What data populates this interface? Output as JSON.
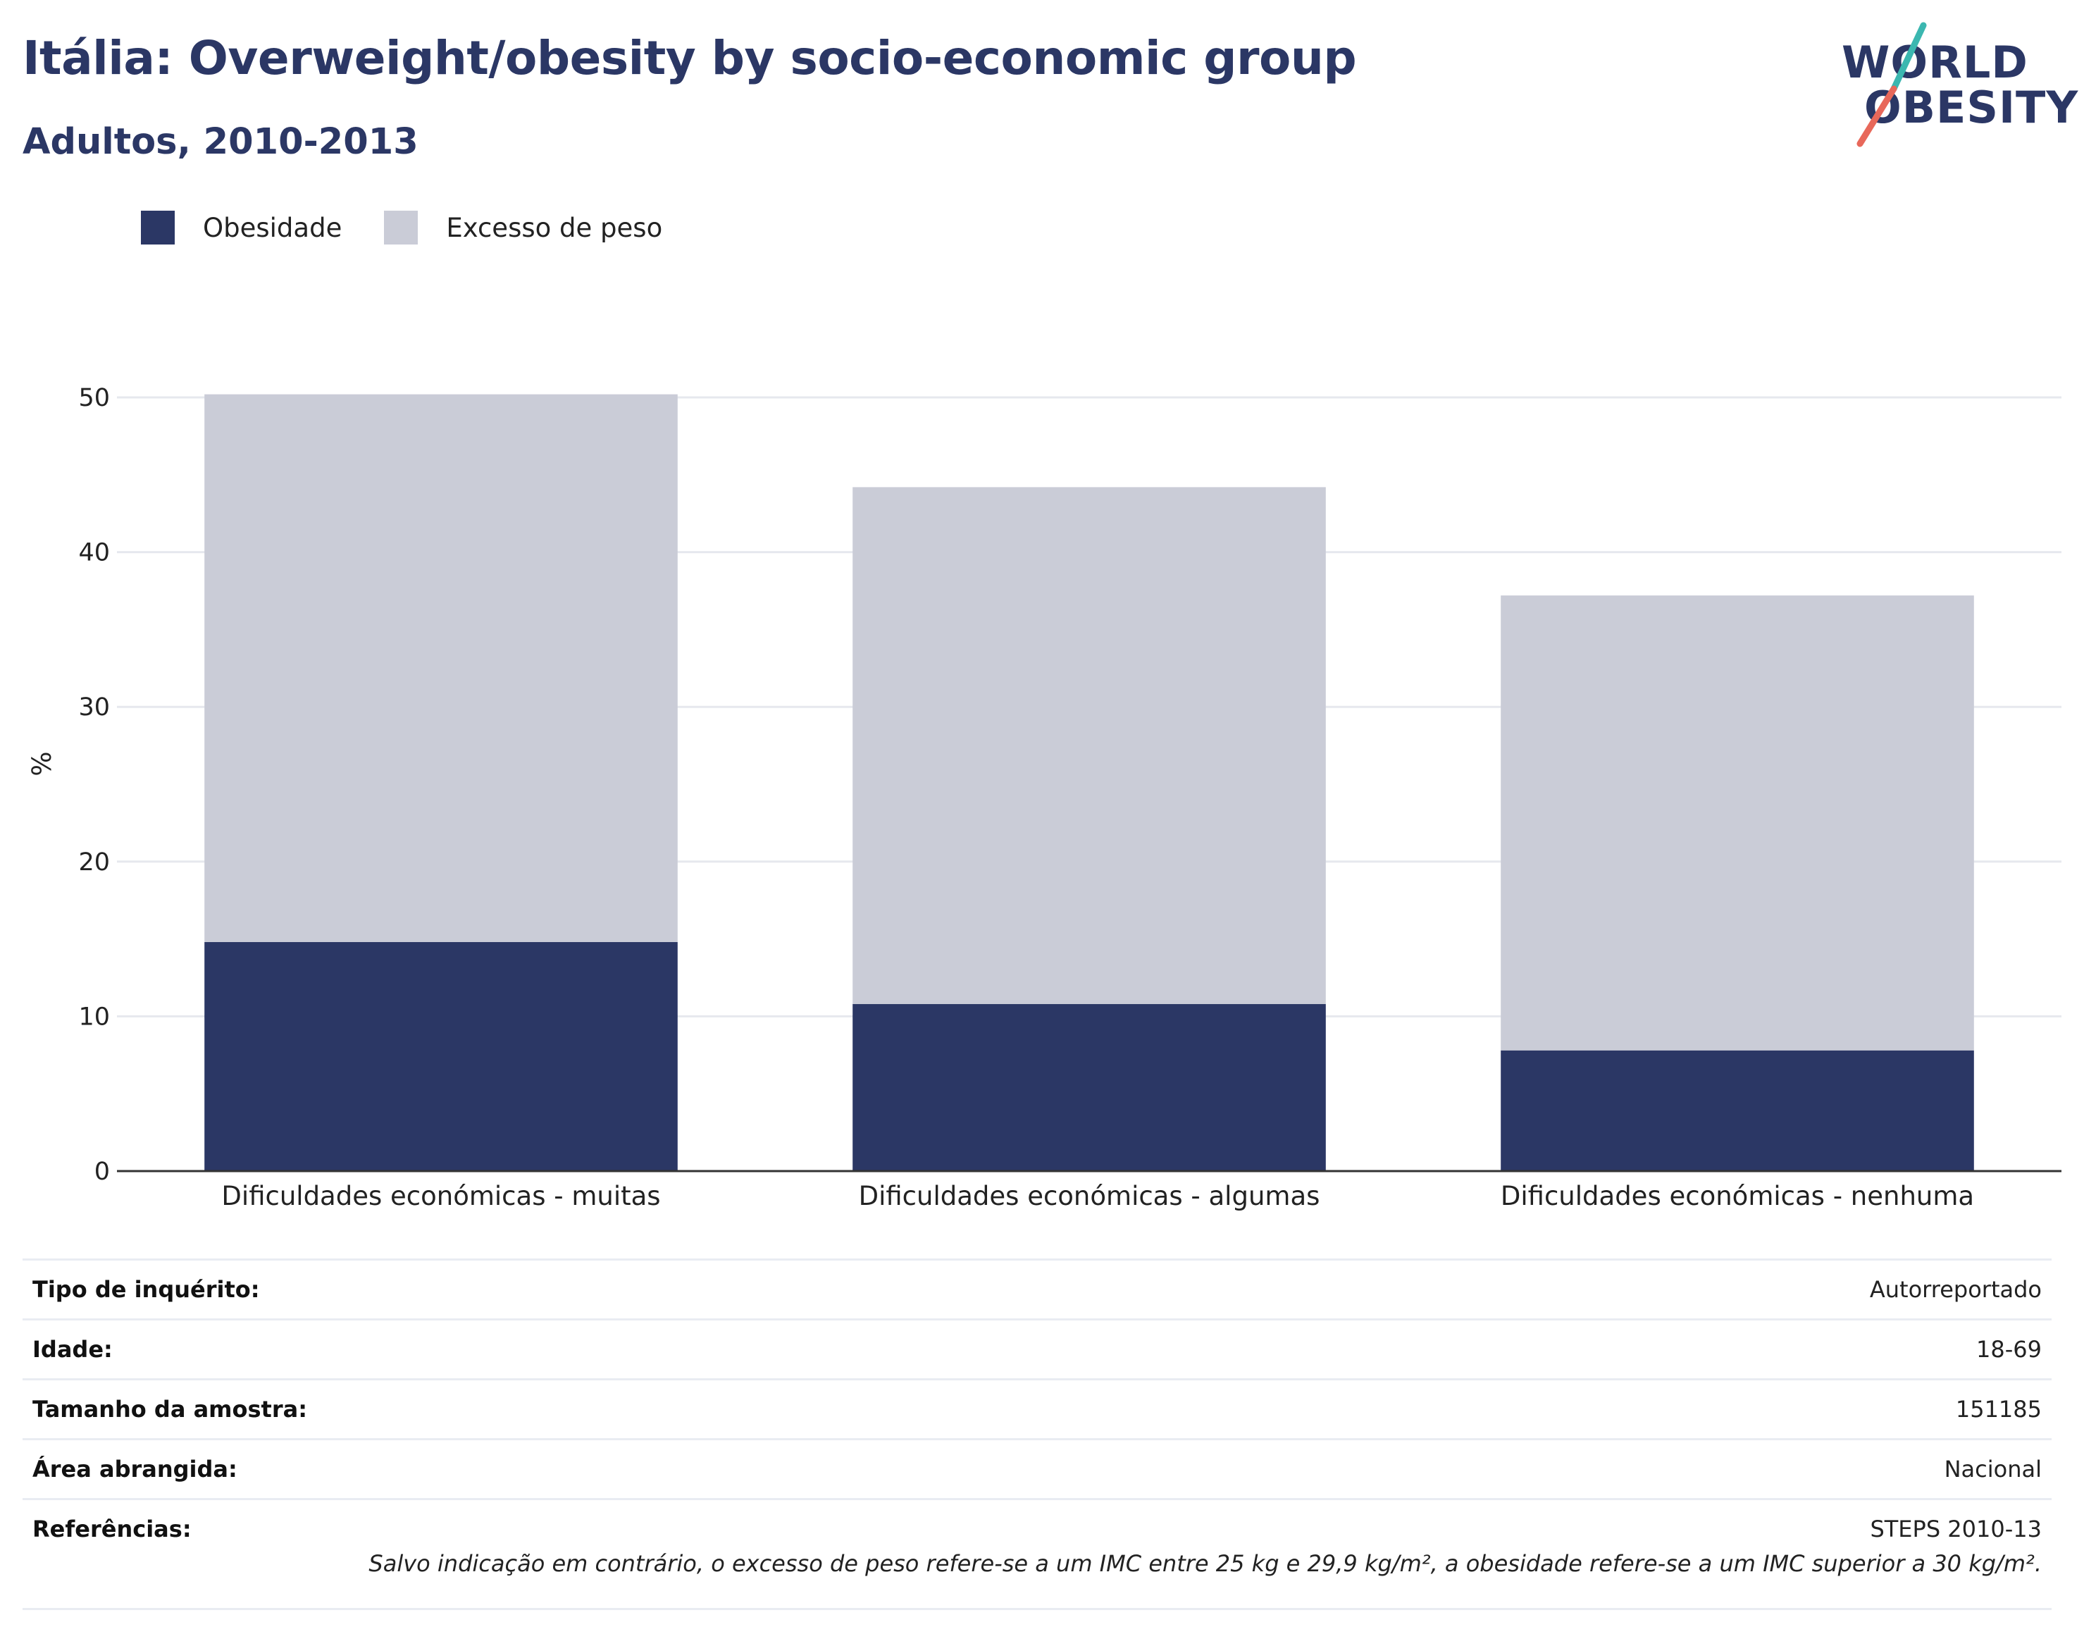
{
  "header": {
    "title": "Itália: Overweight/obesity by socio-economic group",
    "subtitle": "Adultos, 2010-2013"
  },
  "logo": {
    "line1": "WORLD",
    "line2": "OBESITY",
    "colors": {
      "text": "#2b3765",
      "slash_top": "#3bb7b0",
      "slash_bottom": "#e8685a"
    }
  },
  "legend": [
    {
      "label": "Obesidade",
      "color": "#2b3765"
    },
    {
      "label": "Excesso de peso",
      "color": "#caccd7"
    }
  ],
  "chart_data": {
    "type": "bar",
    "stacked": true,
    "categories": [
      "Dificuldades económicas - muitas",
      "Dificuldades económicas - algumas",
      "Dificuldades económicas - nenhuma"
    ],
    "series": [
      {
        "name": "Obesidade",
        "color": "#2b3765",
        "values": [
          14.8,
          10.8,
          7.8
        ]
      },
      {
        "name": "Excesso de peso",
        "color": "#caccd7",
        "values": [
          35.4,
          33.4,
          29.4
        ]
      }
    ],
    "ylabel": "%",
    "xlabel": "",
    "ylim": [
      0,
      50
    ],
    "yticks": [
      0,
      10,
      20,
      30,
      40,
      50
    ],
    "grid": true,
    "legend_position": "top-left"
  },
  "info": [
    {
      "key": "Tipo de inquérito:",
      "value": "Autorreportado"
    },
    {
      "key": "Idade:",
      "value": "18-69"
    },
    {
      "key": "Tamanho da amostra:",
      "value": "151185"
    },
    {
      "key": "Área abrangida:",
      "value": "Nacional"
    },
    {
      "key": "Referências:",
      "value": "STEPS 2010-13"
    }
  ],
  "footnote": "Salvo indicação em contrário, o excesso de peso refere-se a um IMC entre 25 kg e 29,9 kg/m², a obesidade refere-se a um IMC superior a 30 kg/m²."
}
